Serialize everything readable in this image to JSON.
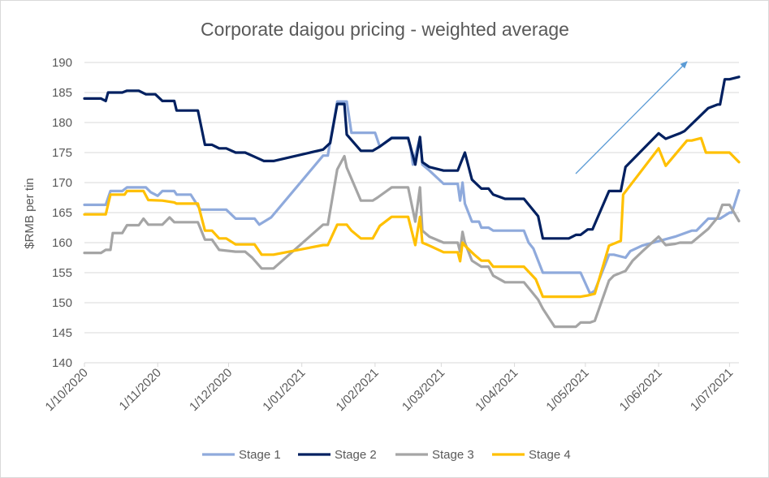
{
  "chart_data": {
    "type": "line",
    "title": "Corporate daigou pricing - weighted average",
    "xlabel": "",
    "ylabel": "$RMB per tin",
    "ylim": [
      140,
      190
    ],
    "y_ticks": [
      "140",
      "145",
      "150",
      "155",
      "160",
      "165",
      "170",
      "175",
      "180",
      "185",
      "190"
    ],
    "x_domain": [
      "2020-10-01",
      "2021-07-05"
    ],
    "x_tick_labels": [
      "1/10/2020",
      "1/11/2020",
      "1/12/2020",
      "1/01/2021",
      "1/02/2021",
      "1/03/2021",
      "1/04/2021",
      "1/05/2021",
      "1/06/2021",
      "1/07/2021"
    ],
    "x_tick_dates": [
      "2020-10-01",
      "2020-11-01",
      "2020-12-01",
      "2021-01-01",
      "2021-02-01",
      "2021-03-01",
      "2021-04-01",
      "2021-05-01",
      "2021-06-01",
      "2021-07-01"
    ],
    "grid": "horizontal",
    "legend_position": "bottom",
    "annotation": "upward trend arrow",
    "series": [
      {
        "name": "Stage 1",
        "color": "#8faadc",
        "points": [
          [
            "2020-10-01",
            166.3
          ],
          [
            "2020-10-08",
            166.3
          ],
          [
            "2020-10-10",
            166.3
          ],
          [
            "2020-10-12",
            168.6
          ],
          [
            "2020-10-17",
            168.6
          ],
          [
            "2020-10-19",
            169.2
          ],
          [
            "2020-10-27",
            169.2
          ],
          [
            "2020-10-29",
            168.4
          ],
          [
            "2020-11-01",
            167.8
          ],
          [
            "2020-11-03",
            168.6
          ],
          [
            "2020-11-08",
            168.6
          ],
          [
            "2020-11-09",
            168.0
          ],
          [
            "2020-11-15",
            168.0
          ],
          [
            "2020-11-19",
            165.5
          ],
          [
            "2020-11-30",
            165.5
          ],
          [
            "2020-12-04",
            164.0
          ],
          [
            "2020-12-12",
            164.0
          ],
          [
            "2020-12-14",
            163.0
          ],
          [
            "2020-12-19",
            164.2
          ],
          [
            "2021-01-10",
            174.5
          ],
          [
            "2021-01-12",
            174.5
          ],
          [
            "2021-01-16",
            183.5
          ],
          [
            "2021-01-20",
            183.5
          ],
          [
            "2021-01-22",
            178.3
          ],
          [
            "2021-02-01",
            178.3
          ],
          [
            "2021-02-03",
            176.0
          ],
          [
            "2021-02-08",
            177.5
          ],
          [
            "2021-02-15",
            177.5
          ],
          [
            "2021-02-16",
            176.0
          ],
          [
            "2021-02-17",
            173.0
          ],
          [
            "2021-02-20",
            177.5
          ],
          [
            "2021-02-21",
            173.0
          ],
          [
            "2021-02-24",
            172.0
          ],
          [
            "2021-03-02",
            169.8
          ],
          [
            "2021-03-08",
            169.8
          ],
          [
            "2021-03-09",
            167.0
          ],
          [
            "2021-03-10",
            170.0
          ],
          [
            "2021-03-11",
            166.5
          ],
          [
            "2021-03-14",
            163.5
          ],
          [
            "2021-03-17",
            163.5
          ],
          [
            "2021-03-18",
            162.5
          ],
          [
            "2021-03-21",
            162.5
          ],
          [
            "2021-03-23",
            162.0
          ],
          [
            "2021-04-05",
            162.0
          ],
          [
            "2021-04-07",
            160.0
          ],
          [
            "2021-04-09",
            159.0
          ],
          [
            "2021-04-13",
            155.0
          ],
          [
            "2021-04-29",
            155.0
          ],
          [
            "2021-05-03",
            151.5
          ],
          [
            "2021-05-05",
            152.0
          ],
          [
            "2021-05-11",
            158.0
          ],
          [
            "2021-05-13",
            158.0
          ],
          [
            "2021-05-18",
            157.5
          ],
          [
            "2021-05-20",
            158.6
          ],
          [
            "2021-05-25",
            159.5
          ],
          [
            "2021-06-08",
            161.0
          ],
          [
            "2021-06-15",
            162.0
          ],
          [
            "2021-06-17",
            162.0
          ],
          [
            "2021-06-22",
            164.0
          ],
          [
            "2021-06-27",
            164.0
          ],
          [
            "2021-07-01",
            165.0
          ],
          [
            "2021-07-02",
            165.0
          ],
          [
            "2021-07-05",
            168.7
          ]
        ]
      },
      {
        "name": "Stage 2",
        "color": "#002060",
        "points": [
          [
            "2020-10-01",
            184.0
          ],
          [
            "2020-10-08",
            184.0
          ],
          [
            "2020-10-10",
            183.6
          ],
          [
            "2020-10-11",
            185.0
          ],
          [
            "2020-10-17",
            185.0
          ],
          [
            "2020-10-19",
            185.3
          ],
          [
            "2020-10-24",
            185.3
          ],
          [
            "2020-10-27",
            184.7
          ],
          [
            "2020-10-31",
            184.7
          ],
          [
            "2020-11-03",
            183.6
          ],
          [
            "2020-11-08",
            183.6
          ],
          [
            "2020-11-09",
            182.0
          ],
          [
            "2020-11-18",
            182.0
          ],
          [
            "2020-11-21",
            176.3
          ],
          [
            "2020-11-24",
            176.3
          ],
          [
            "2020-11-27",
            175.7
          ],
          [
            "2020-11-30",
            175.7
          ],
          [
            "2020-12-04",
            175.0
          ],
          [
            "2020-12-08",
            175.0
          ],
          [
            "2020-12-12",
            174.3
          ],
          [
            "2020-12-16",
            173.6
          ],
          [
            "2020-12-20",
            173.6
          ],
          [
            "2021-01-10",
            175.5
          ],
          [
            "2021-01-13",
            176.6
          ],
          [
            "2021-01-16",
            183.1
          ],
          [
            "2021-01-19",
            183.1
          ],
          [
            "2021-01-20",
            178.0
          ],
          [
            "2021-01-26",
            175.3
          ],
          [
            "2021-01-31",
            175.3
          ],
          [
            "2021-02-03",
            176.0
          ],
          [
            "2021-02-08",
            177.4
          ],
          [
            "2021-02-15",
            177.4
          ],
          [
            "2021-02-18",
            173.0
          ],
          [
            "2021-02-20",
            177.6
          ],
          [
            "2021-02-21",
            173.4
          ],
          [
            "2021-02-24",
            172.6
          ],
          [
            "2021-03-02",
            172.0
          ],
          [
            "2021-03-08",
            172.0
          ],
          [
            "2021-03-11",
            175.0
          ],
          [
            "2021-03-14",
            170.5
          ],
          [
            "2021-03-18",
            169.0
          ],
          [
            "2021-03-21",
            169.0
          ],
          [
            "2021-03-23",
            168.0
          ],
          [
            "2021-03-28",
            167.3
          ],
          [
            "2021-04-05",
            167.3
          ],
          [
            "2021-04-11",
            164.4
          ],
          [
            "2021-04-13",
            160.7
          ],
          [
            "2021-04-24",
            160.7
          ],
          [
            "2021-04-27",
            161.3
          ],
          [
            "2021-04-29",
            161.3
          ],
          [
            "2021-05-02",
            162.2
          ],
          [
            "2021-05-04",
            162.2
          ],
          [
            "2021-05-11",
            168.6
          ],
          [
            "2021-05-16",
            168.6
          ],
          [
            "2021-05-18",
            172.6
          ],
          [
            "2021-06-01",
            178.2
          ],
          [
            "2021-06-04",
            177.3
          ],
          [
            "2021-06-08",
            177.9
          ],
          [
            "2021-06-10",
            178.2
          ],
          [
            "2021-06-12",
            178.6
          ],
          [
            "2021-06-22",
            182.4
          ],
          [
            "2021-06-26",
            183.0
          ],
          [
            "2021-06-27",
            183.0
          ],
          [
            "2021-06-29",
            187.2
          ],
          [
            "2021-07-01",
            187.2
          ],
          [
            "2021-07-05",
            187.6
          ]
        ]
      },
      {
        "name": "Stage 3",
        "color": "#a5a5a5",
        "points": [
          [
            "2020-10-01",
            158.3
          ],
          [
            "2020-10-08",
            158.3
          ],
          [
            "2020-10-10",
            158.8
          ],
          [
            "2020-10-12",
            158.8
          ],
          [
            "2020-10-13",
            161.6
          ],
          [
            "2020-10-17",
            161.6
          ],
          [
            "2020-10-19",
            162.9
          ],
          [
            "2020-10-24",
            162.9
          ],
          [
            "2020-10-26",
            164.0
          ],
          [
            "2020-10-28",
            163.0
          ],
          [
            "2020-11-03",
            163.0
          ],
          [
            "2020-11-06",
            164.2
          ],
          [
            "2020-11-08",
            163.4
          ],
          [
            "2020-11-18",
            163.4
          ],
          [
            "2020-11-21",
            160.5
          ],
          [
            "2020-11-24",
            160.5
          ],
          [
            "2020-11-27",
            158.8
          ],
          [
            "2020-12-04",
            158.5
          ],
          [
            "2020-12-08",
            158.5
          ],
          [
            "2020-12-11",
            157.5
          ],
          [
            "2020-12-15",
            155.7
          ],
          [
            "2020-12-20",
            155.7
          ],
          [
            "2021-01-10",
            163.0
          ],
          [
            "2021-01-12",
            163.0
          ],
          [
            "2021-01-16",
            172.2
          ],
          [
            "2021-01-19",
            174.4
          ],
          [
            "2021-01-20",
            172.5
          ],
          [
            "2021-01-26",
            167.0
          ],
          [
            "2021-01-31",
            167.0
          ],
          [
            "2021-02-02",
            167.5
          ],
          [
            "2021-02-08",
            169.2
          ],
          [
            "2021-02-15",
            169.2
          ],
          [
            "2021-02-18",
            163.5
          ],
          [
            "2021-02-20",
            169.2
          ],
          [
            "2021-02-21",
            162.0
          ],
          [
            "2021-02-24",
            161.0
          ],
          [
            "2021-03-02",
            160.0
          ],
          [
            "2021-03-08",
            160.0
          ],
          [
            "2021-03-09",
            158.5
          ],
          [
            "2021-03-10",
            161.8
          ],
          [
            "2021-03-11",
            160.0
          ],
          [
            "2021-03-14",
            157.0
          ],
          [
            "2021-03-18",
            156.0
          ],
          [
            "2021-03-21",
            156.0
          ],
          [
            "2021-03-23",
            154.5
          ],
          [
            "2021-03-28",
            153.4
          ],
          [
            "2021-04-05",
            153.4
          ],
          [
            "2021-04-11",
            150.5
          ],
          [
            "2021-04-13",
            149.0
          ],
          [
            "2021-04-18",
            146.0
          ],
          [
            "2021-04-27",
            146.0
          ],
          [
            "2021-04-29",
            146.7
          ],
          [
            "2021-05-03",
            146.7
          ],
          [
            "2021-05-05",
            147.0
          ],
          [
            "2021-05-11",
            153.7
          ],
          [
            "2021-05-13",
            154.5
          ],
          [
            "2021-05-18",
            155.3
          ],
          [
            "2021-05-21",
            157.0
          ],
          [
            "2021-05-25",
            158.5
          ],
          [
            "2021-06-01",
            161.0
          ],
          [
            "2021-06-04",
            159.6
          ],
          [
            "2021-06-08",
            159.8
          ],
          [
            "2021-06-10",
            160.0
          ],
          [
            "2021-06-15",
            160.0
          ],
          [
            "2021-06-22",
            162.3
          ],
          [
            "2021-06-26",
            164.2
          ],
          [
            "2021-06-28",
            166.3
          ],
          [
            "2021-07-01",
            166.3
          ],
          [
            "2021-07-05",
            163.6
          ]
        ]
      },
      {
        "name": "Stage 4",
        "color": "#ffc000",
        "points": [
          [
            "2020-10-01",
            164.7
          ],
          [
            "2020-10-08",
            164.7
          ],
          [
            "2020-10-10",
            164.7
          ],
          [
            "2020-10-12",
            168.0
          ],
          [
            "2020-10-18",
            168.0
          ],
          [
            "2020-10-19",
            168.6
          ],
          [
            "2020-10-26",
            168.6
          ],
          [
            "2020-10-28",
            167.1
          ],
          [
            "2020-11-03",
            167.0
          ],
          [
            "2020-11-08",
            166.7
          ],
          [
            "2020-11-09",
            166.5
          ],
          [
            "2020-11-18",
            166.5
          ],
          [
            "2020-11-21",
            162.0
          ],
          [
            "2020-11-24",
            162.0
          ],
          [
            "2020-11-27",
            160.7
          ],
          [
            "2020-11-30",
            160.7
          ],
          [
            "2020-12-04",
            159.7
          ],
          [
            "2020-12-12",
            159.7
          ],
          [
            "2020-12-15",
            158.0
          ],
          [
            "2020-12-20",
            158.0
          ],
          [
            "2021-01-10",
            159.6
          ],
          [
            "2021-01-12",
            159.6
          ],
          [
            "2021-01-16",
            163.0
          ],
          [
            "2021-01-20",
            163.0
          ],
          [
            "2021-01-22",
            162.0
          ],
          [
            "2021-01-26",
            160.7
          ],
          [
            "2021-01-31",
            160.7
          ],
          [
            "2021-02-03",
            162.8
          ],
          [
            "2021-02-08",
            164.3
          ],
          [
            "2021-02-15",
            164.3
          ],
          [
            "2021-02-18",
            159.6
          ],
          [
            "2021-02-20",
            164.3
          ],
          [
            "2021-02-21",
            160.0
          ],
          [
            "2021-02-24",
            159.5
          ],
          [
            "2021-03-02",
            158.4
          ],
          [
            "2021-03-08",
            158.4
          ],
          [
            "2021-03-09",
            156.9
          ],
          [
            "2021-03-10",
            160.0
          ],
          [
            "2021-03-11",
            159.5
          ],
          [
            "2021-03-15",
            158.0
          ],
          [
            "2021-03-18",
            157.0
          ],
          [
            "2021-03-21",
            157.0
          ],
          [
            "2021-03-23",
            156.0
          ],
          [
            "2021-04-05",
            156.0
          ],
          [
            "2021-04-10",
            153.9
          ],
          [
            "2021-04-13",
            151.0
          ],
          [
            "2021-04-29",
            151.0
          ],
          [
            "2021-05-02",
            151.2
          ],
          [
            "2021-05-05",
            151.5
          ],
          [
            "2021-05-11",
            159.5
          ],
          [
            "2021-05-16",
            160.3
          ],
          [
            "2021-05-17",
            168.0
          ],
          [
            "2021-06-01",
            175.7
          ],
          [
            "2021-06-04",
            172.8
          ],
          [
            "2021-06-13",
            177.0
          ],
          [
            "2021-06-15",
            177.0
          ],
          [
            "2021-06-19",
            177.4
          ],
          [
            "2021-06-21",
            175.0
          ],
          [
            "2021-06-29",
            175.0
          ],
          [
            "2021-07-01",
            175.0
          ],
          [
            "2021-07-05",
            173.4
          ]
        ]
      }
    ]
  }
}
